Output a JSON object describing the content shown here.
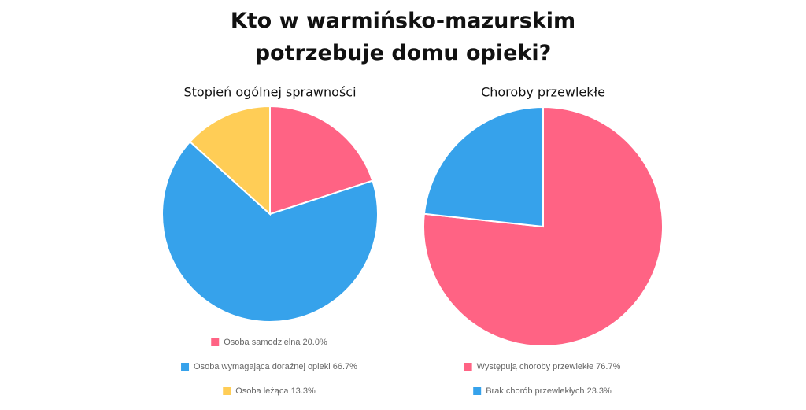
{
  "title": "Kto w warmińsko-mazurskim potrzebuje domu opieki?",
  "chart_data": [
    {
      "type": "pie",
      "title": "Stopień ogólnej sprawności",
      "categories": [
        "Osoba samodzielna",
        "Osoba wymagająca doraźnej opieki",
        "Osoba leżąca"
      ],
      "values": [
        20.0,
        66.7,
        13.3
      ],
      "value_labels": [
        "20.0%",
        "66.7%",
        "13.3%"
      ],
      "colors": [
        "#ff6384",
        "#36a2eb",
        "#ffcd56"
      ]
    },
    {
      "type": "pie",
      "title": "Choroby przewlekłe",
      "categories": [
        "Występują choroby przewlekłe",
        "Brak chorób przewlekłych"
      ],
      "values": [
        76.7,
        23.3
      ],
      "value_labels": [
        "76.7%",
        "23.3%"
      ],
      "colors": [
        "#ff6384",
        "#36a2eb"
      ]
    }
  ]
}
